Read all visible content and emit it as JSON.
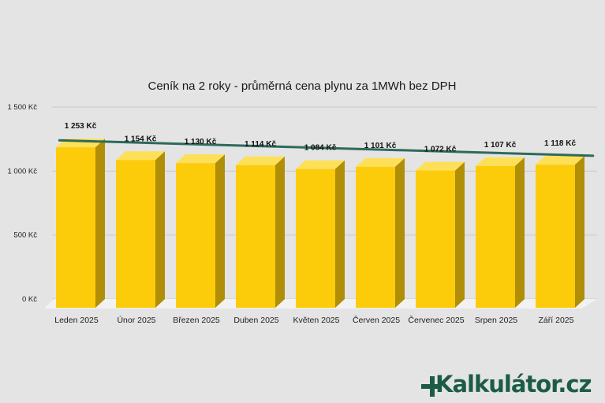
{
  "brand": {
    "logo_text": "Kalkulátor.cz"
  },
  "colors": {
    "background": "#e4e4e4",
    "bar_front": "#fccc0a",
    "bar_top": "#fde058",
    "bar_side": "#b08e07",
    "trend": "#2d6a5c",
    "grid": "#c7c7c7"
  },
  "chart_data": {
    "type": "bar",
    "title": "Ceník na 2 roky - průměrná cena plynu za 1MWh bez DPH",
    "categories": [
      "Leden 2025",
      "Únor 2025",
      "Březen 2025",
      "Duben 2025",
      "Květen 2025",
      "Červen 2025",
      "Červenec 2025",
      "Srpen 2025",
      "Září 2025"
    ],
    "values": [
      1253,
      1154,
      1130,
      1114,
      1084,
      1101,
      1072,
      1107,
      1118
    ],
    "data_labels": [
      "1 253 Kč",
      "1 154 Kč",
      "1 130 Kč",
      "1 114 Kč",
      "1 084 Kč",
      "1 101 Kč",
      "1 072 Kč",
      "1 107 Kč",
      "1 118 Kč"
    ],
    "y_ticks": [
      0,
      500,
      1000,
      1500
    ],
    "y_tick_labels": [
      "0 Kč",
      "500 Kč",
      "1 000 Kč",
      "1 500 Kč"
    ],
    "ylim": [
      0,
      1500
    ],
    "grid": true,
    "trendline": "linear",
    "style": "3d"
  }
}
